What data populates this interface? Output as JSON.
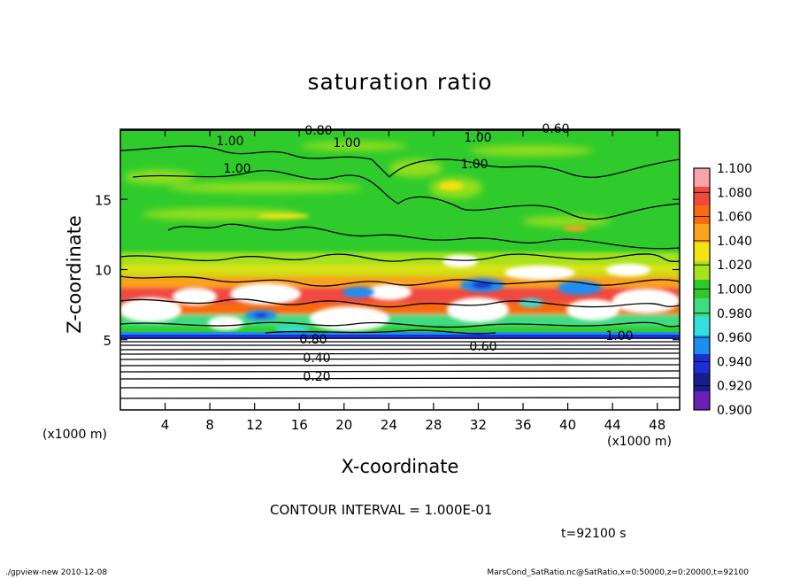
{
  "chart_data": {
    "type": "heatmap",
    "title": "saturation ratio",
    "xlabel": "X-coordinate",
    "ylabel": "Z-coordinate",
    "x_unit": "(x1000 m)",
    "xlim": [
      0,
      50
    ],
    "ylim": [
      0,
      20
    ],
    "x_ticks": [
      "4",
      "8",
      "12",
      "16",
      "20",
      "24",
      "28",
      "32",
      "36",
      "40",
      "44",
      "48"
    ],
    "y_ticks": [
      "5",
      "10",
      "15"
    ],
    "colorbar": {
      "levels": [
        "1.100",
        "1.080",
        "1.060",
        "1.040",
        "1.020",
        "1.000",
        "0.980",
        "0.960",
        "0.940",
        "0.920",
        "0.900"
      ],
      "colors": [
        "#f7a3a9",
        "#f04a3f",
        "#f86b10",
        "#fba21c",
        "#f4e314",
        "#a8e21e",
        "#30c92b",
        "#3fdc82",
        "#32e0e0",
        "#1a8ff0",
        "#1d2fd0",
        "#181d8f",
        "#6a1fb5"
      ]
    },
    "contour_labels": [
      "0.80",
      "0.60",
      "1.00",
      "1.00",
      "1.00",
      "1.00",
      "1.00",
      "1.00",
      "0.80",
      "0.60",
      "0.40",
      "0.20"
    ],
    "contour_interval": "CONTOUR INTERVAL = 1.000E-01",
    "time": "t=92100 s"
  },
  "footer": {
    "left": "./gpview-new  2010-12-08",
    "right": "MarsCond_SatRatio.nc@SatRatio,x=0:50000,z=0:20000,t=92100"
  }
}
